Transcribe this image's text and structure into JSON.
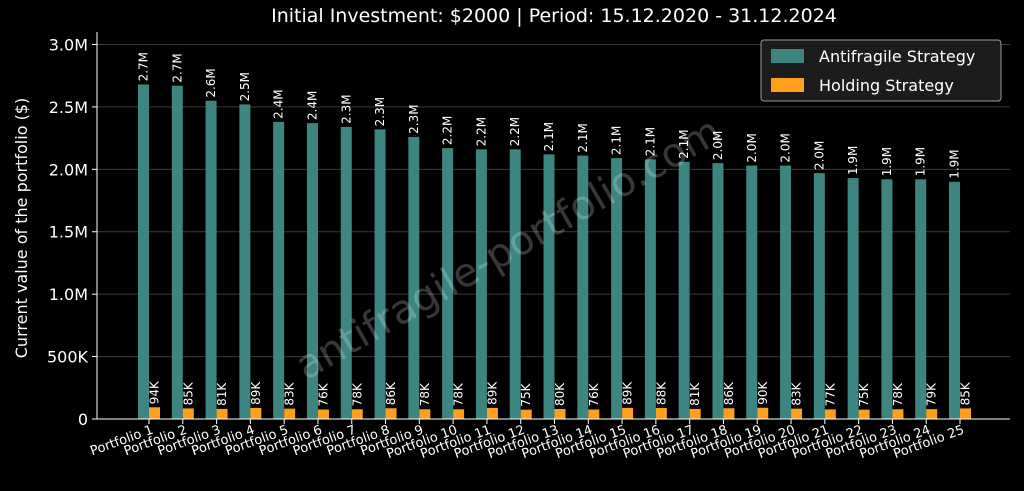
{
  "chart_data": {
    "type": "bar",
    "title": "Initial Investment: $2000 | Period: 15.12.2020 - 31.12.2024",
    "xlabel": "",
    "ylabel": "Current value of the portfolio ($)",
    "ylim": [
      0,
      3100000
    ],
    "yticks": [
      0,
      500000,
      1000000,
      1500000,
      2000000,
      2500000,
      3000000
    ],
    "ytick_labels": [
      "0",
      "500K",
      "1.0M",
      "1.5M",
      "2.0M",
      "2.5M",
      "3.0M"
    ],
    "grid": "horizontal",
    "legend_position": "top-right",
    "categories": [
      "Portfolio 1",
      "Portfolio 2",
      "Portfolio 3",
      "Portfolio 4",
      "Portfolio 5",
      "Portfolio 6",
      "Portfolio 7",
      "Portfolio 8",
      "Portfolio 9",
      "Portfolio 10",
      "Portfolio 11",
      "Portfolio 12",
      "Portfolio 13",
      "Portfolio 14",
      "Portfolio 15",
      "Portfolio 16",
      "Portfolio 17",
      "Portfolio 18",
      "Portfolio 19",
      "Portfolio 20",
      "Portfolio 21",
      "Portfolio 22",
      "Portfolio 23",
      "Portfolio 24",
      "Portfolio 25"
    ],
    "series": [
      {
        "name": "Antifragile Strategy",
        "color": "#3d8580",
        "values": [
          2680000,
          2670000,
          2550000,
          2520000,
          2380000,
          2370000,
          2340000,
          2320000,
          2260000,
          2170000,
          2160000,
          2160000,
          2120000,
          2110000,
          2090000,
          2080000,
          2060000,
          2050000,
          2030000,
          2030000,
          1970000,
          1930000,
          1920000,
          1920000,
          1900000
        ],
        "labels": [
          "2.7M",
          "2.7M",
          "2.6M",
          "2.5M",
          "2.4M",
          "2.4M",
          "2.3M",
          "2.3M",
          "2.3M",
          "2.2M",
          "2.2M",
          "2.2M",
          "2.1M",
          "2.1M",
          "2.1M",
          "2.1M",
          "2.1M",
          "2.0M",
          "2.0M",
          "2.0M",
          "2.0M",
          "1.9M",
          "1.9M",
          "1.9M",
          "1.9M"
        ]
      },
      {
        "name": "Holding Strategy",
        "color": "#ff9f1c",
        "values": [
          94000,
          85000,
          81000,
          89000,
          83000,
          76000,
          78000,
          86000,
          78000,
          78000,
          89000,
          75000,
          80000,
          76000,
          89000,
          88000,
          81000,
          86000,
          90000,
          83000,
          77000,
          75000,
          78000,
          79000,
          85000
        ],
        "labels": [
          "94K",
          "85K",
          "81K",
          "89K",
          "83K",
          "76K",
          "78K",
          "86K",
          "78K",
          "78K",
          "89K",
          "75K",
          "80K",
          "76K",
          "89K",
          "88K",
          "81K",
          "86K",
          "90K",
          "83K",
          "77K",
          "75K",
          "78K",
          "79K",
          "85K"
        ]
      }
    ],
    "watermark": "antifragile-portfolio.com"
  }
}
